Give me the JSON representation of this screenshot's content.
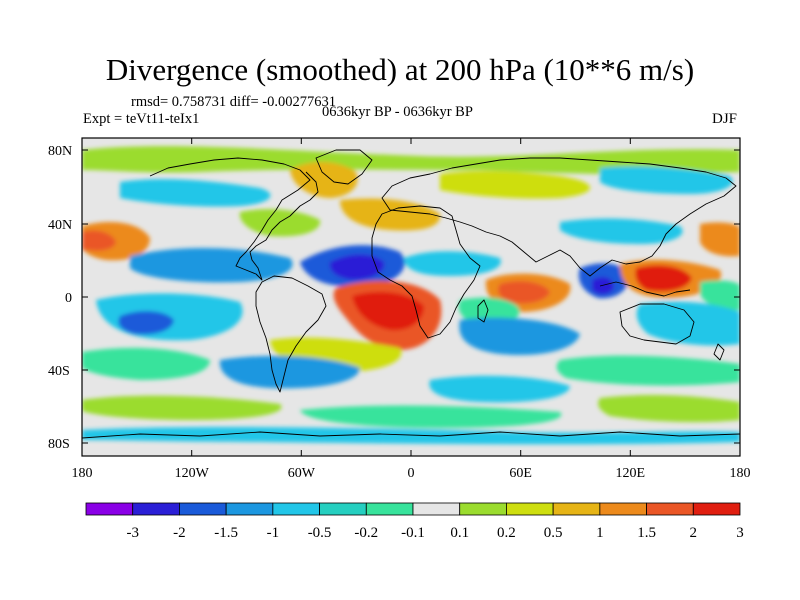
{
  "title": "Divergence (smoothed) at 200 hPa (10**6 m/s)",
  "stats": "rmsd= 0.758731 diff= -0.00277631",
  "experiment": "Expt = teVt11-teIx1",
  "period": "0636kyr BP - 0636kyr BP",
  "season": "DJF",
  "lat_ticks": [
    "80N",
    "40N",
    "0",
    "40S",
    "80S"
  ],
  "lon_ticks": [
    "180",
    "120W",
    "60W",
    "0",
    "60E",
    "120E",
    "180"
  ],
  "colorbar": {
    "labels": [
      "-3",
      "-2",
      "-1.5",
      "-1",
      "-0.5",
      "-0.2",
      "-0.1",
      "0.1",
      "0.2",
      "0.5",
      "1",
      "1.5",
      "2",
      "3"
    ],
    "colors": [
      "#8a00e6",
      "#2b1fd6",
      "#1a5ad9",
      "#1c97e0",
      "#22c6e8",
      "#25cfc0",
      "#38e39c",
      "#e6e6e6",
      "#9bdc2e",
      "#cede10",
      "#e6b416",
      "#ec8a1c",
      "#ea5626",
      "#e01e10"
    ]
  }
}
